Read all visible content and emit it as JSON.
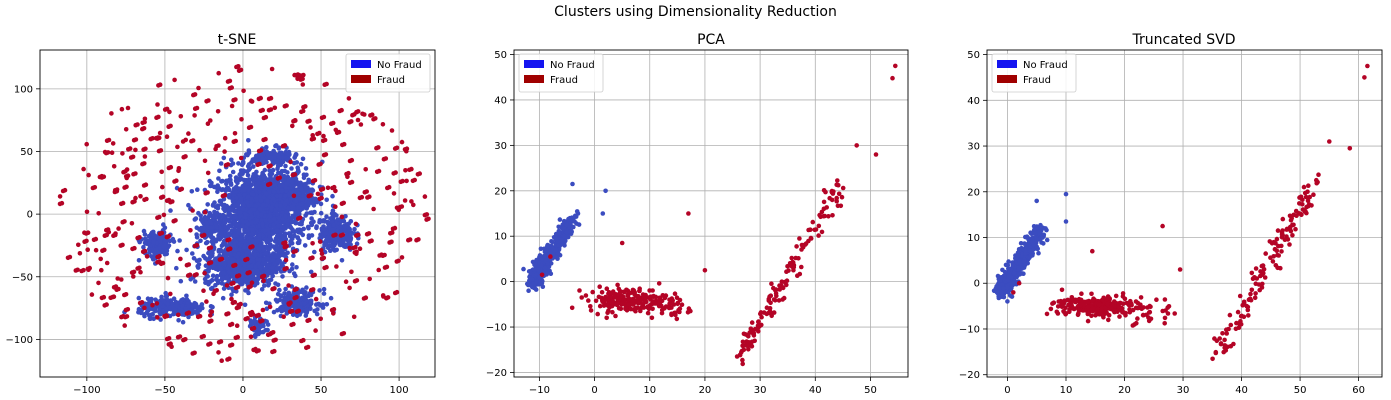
{
  "figure": {
    "suptitle": "Clusters using Dimensionality Reduction"
  },
  "colors": {
    "no_fraud_legend": "#1414f0",
    "fraud_legend": "#a00000",
    "no_fraud_points": "#3b4cc0",
    "fraud_points": "#b40426",
    "grid": "#b0b0b0"
  },
  "chart_data": [
    {
      "type": "scatter",
      "title": "t-SNE",
      "xlabel": "",
      "ylabel": "",
      "xlim": [
        -130,
        123
      ],
      "ylim": [
        -130,
        131
      ],
      "xticks": [
        -100,
        -50,
        0,
        50,
        100
      ],
      "yticks": [
        -100,
        -50,
        0,
        50,
        100
      ],
      "grid": true,
      "legend": {
        "placement": "top-right",
        "entries": [
          "No Fraud",
          "Fraud"
        ]
      },
      "series": [
        {
          "name": "No Fraud",
          "clusters": [
            {
              "x": 10,
              "y": 0,
              "sx": 25,
              "sy": 30,
              "n": 1400
            },
            {
              "x": 0,
              "y": -40,
              "sx": 20,
              "sy": 15,
              "n": 700
            },
            {
              "x": 30,
              "y": 15,
              "sx": 14,
              "sy": 14,
              "n": 350
            },
            {
              "x": 60,
              "y": -15,
              "sx": 9,
              "sy": 12,
              "n": 220
            },
            {
              "x": -45,
              "y": -75,
              "sx": 18,
              "sy": 6,
              "n": 260
            },
            {
              "x": 35,
              "y": -70,
              "sx": 12,
              "sy": 8,
              "n": 200
            },
            {
              "x": -55,
              "y": -25,
              "sx": 8,
              "sy": 10,
              "n": 160
            },
            {
              "x": 20,
              "y": 45,
              "sx": 12,
              "sy": 6,
              "n": 140
            },
            {
              "x": -20,
              "y": -10,
              "sx": 8,
              "sy": 8,
              "n": 100
            },
            {
              "x": 10,
              "y": -90,
              "sx": 4,
              "sy": 6,
              "n": 50
            }
          ]
        },
        {
          "name": "Fraud",
          "scatter": {
            "rmin": 15,
            "rmax": 118,
            "n": 420
          }
        }
      ]
    },
    {
      "type": "scatter",
      "title": "PCA",
      "xlabel": "",
      "ylabel": "",
      "xlim": [
        -14.6,
        56.8
      ],
      "ylim": [
        -21,
        51
      ],
      "xticks": [
        -10,
        0,
        10,
        20,
        30,
        40,
        50
      ],
      "yticks": [
        -20,
        -10,
        0,
        10,
        20,
        30,
        40,
        50
      ],
      "grid": true,
      "legend": {
        "placement": "top-left",
        "entries": [
          "No Fraud",
          "Fraud"
        ]
      },
      "series": [
        {
          "name": "No Fraud",
          "points": [
            [
              -11.5,
              -0.8
            ],
            [
              -11,
              -0.5
            ],
            [
              -10.5,
              0
            ],
            [
              -10,
              1
            ],
            [
              -9.5,
              2
            ],
            [
              -9,
              3
            ],
            [
              -8.5,
              4
            ],
            [
              -8,
              5
            ],
            [
              -7.5,
              6
            ],
            [
              -7,
              7
            ],
            [
              -6.5,
              8
            ],
            [
              -6,
              9
            ],
            [
              -5.5,
              10
            ],
            [
              -5,
              11
            ],
            [
              -4.5,
              12
            ],
            [
              -4,
              13.5
            ],
            [
              -3.5,
              14.5
            ],
            [
              -3,
              15
            ],
            [
              -4,
              21.5
            ],
            [
              2,
              20
            ],
            [
              1.5,
              15
            ]
          ],
          "band": {
            "x0": -11,
            "y0": 0,
            "x1": -4,
            "y1": 14,
            "n": 450
          }
        },
        {
          "name": "Fraud",
          "points": [
            [
              54.5,
              47.5
            ],
            [
              54,
              44.8
            ],
            [
              47.5,
              30
            ],
            [
              51,
              28
            ],
            [
              17,
              15
            ],
            [
              20,
              2.5
            ],
            [
              5,
              8.5
            ],
            [
              -8,
              5.5
            ],
            [
              -9.5,
              1.5
            ]
          ],
          "clusters": [
            {
              "x": 6,
              "y": -4,
              "sx": 6,
              "sy": 2.2,
              "n": 200
            },
            {
              "x": 14,
              "y": -6,
              "sx": 3,
              "sy": 2,
              "n": 30
            }
          ],
          "line": {
            "x0": 26,
            "y0": -17,
            "x1": 45,
            "y1": 22,
            "n": 140
          }
        }
      ]
    },
    {
      "type": "scatter",
      "title": "Truncated SVD",
      "xlabel": "",
      "ylabel": "",
      "xlim": [
        -3.5,
        64
      ],
      "ylim": [
        -20.5,
        51
      ],
      "xticks": [
        0,
        10,
        20,
        30,
        40,
        50,
        60
      ],
      "yticks": [
        -20,
        -10,
        0,
        10,
        20,
        30,
        40,
        50
      ],
      "grid": true,
      "legend": {
        "placement": "top-left",
        "entries": [
          "No Fraud",
          "Fraud"
        ]
      },
      "series": [
        {
          "name": "No Fraud",
          "points": [
            [
              -1.5,
              -2.8
            ],
            [
              -1,
              -2
            ],
            [
              0,
              -1
            ],
            [
              1,
              0
            ],
            [
              2,
              2
            ],
            [
              3,
              4
            ],
            [
              4,
              6
            ],
            [
              5,
              8
            ],
            [
              6,
              10
            ],
            [
              6.5,
              12
            ],
            [
              5,
              18
            ],
            [
              10,
              19.5
            ],
            [
              10,
              13.5
            ]
          ],
          "band": {
            "x0": -1,
            "y0": -1.5,
            "x1": 6,
            "y1": 12,
            "n": 450
          }
        },
        {
          "name": "Fraud",
          "points": [
            [
              61.5,
              47.5
            ],
            [
              61,
              45
            ],
            [
              55,
              31
            ],
            [
              58.5,
              29.5
            ],
            [
              26.5,
              12.5
            ],
            [
              29.5,
              3
            ],
            [
              14.5,
              7
            ],
            [
              1,
              -2
            ],
            [
              2,
              0
            ]
          ],
          "clusters": [
            {
              "x": 15,
              "y": -5,
              "sx": 6,
              "sy": 2,
              "n": 220
            },
            {
              "x": 24,
              "y": -7,
              "sx": 3,
              "sy": 2.5,
              "n": 30
            }
          ],
          "line": {
            "x0": 36,
            "y0": -15.5,
            "x1": 53,
            "y1": 23,
            "n": 140
          }
        }
      ]
    }
  ]
}
